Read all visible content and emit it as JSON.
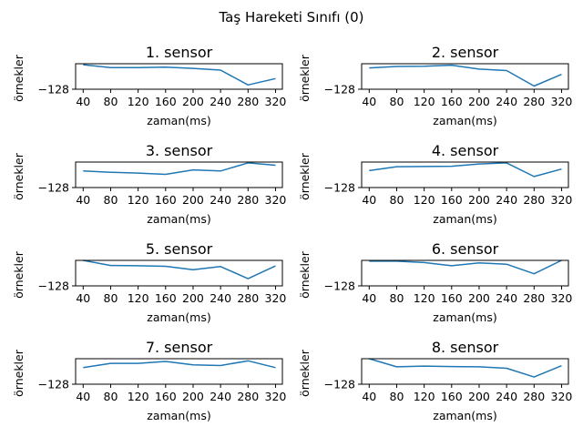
{
  "figure": {
    "suptitle": "Taş Hareketi Sınıfı (0)"
  },
  "chart_data": [
    {
      "type": "line",
      "title": "1. sensor",
      "xlabel": "zaman(ms)",
      "ylabel": "örnekler",
      "x": [
        40,
        80,
        120,
        160,
        200,
        240,
        280,
        320
      ],
      "xticks": [
        "40",
        "80",
        "120",
        "160",
        "200",
        "240",
        "280",
        "320"
      ],
      "yticks": [
        "−128"
      ],
      "xlim": [
        29,
        330
      ],
      "ylim": [
        -128,
        -126.8
      ],
      "grid": false,
      "color": "#1f77b4",
      "series": [
        {
          "values": [
            -126.85,
            -126.98,
            -126.98,
            -126.96,
            -127.02,
            -127.1,
            -127.8,
            -127.5
          ]
        }
      ]
    },
    {
      "type": "line",
      "title": "2. sensor",
      "xlabel": "zaman(ms)",
      "ylabel": "örnekler",
      "x": [
        40,
        80,
        120,
        160,
        200,
        240,
        280,
        320
      ],
      "xticks": [
        "40",
        "80",
        "120",
        "160",
        "200",
        "240",
        "280",
        "320"
      ],
      "yticks": [
        "−128"
      ],
      "xlim": [
        29,
        330
      ],
      "ylim": [
        -128,
        -126.8
      ],
      "grid": false,
      "color": "#1f77b4",
      "series": [
        {
          "values": [
            -127.0,
            -126.93,
            -126.92,
            -126.87,
            -127.05,
            -127.12,
            -127.85,
            -127.3
          ]
        }
      ]
    },
    {
      "type": "line",
      "title": "3. sensor",
      "xlabel": "zaman(ms)",
      "ylabel": "örnekler",
      "x": [
        40,
        80,
        120,
        160,
        200,
        240,
        280,
        320
      ],
      "xticks": [
        "40",
        "80",
        "120",
        "160",
        "200",
        "240",
        "280",
        "320"
      ],
      "yticks": [
        "−128"
      ],
      "xlim": [
        29,
        330
      ],
      "ylim": [
        -128,
        -126.8
      ],
      "grid": false,
      "color": "#1f77b4",
      "series": [
        {
          "values": [
            -127.22,
            -127.28,
            -127.32,
            -127.38,
            -127.17,
            -127.22,
            -126.84,
            -126.95
          ]
        }
      ]
    },
    {
      "type": "line",
      "title": "4. sensor",
      "xlabel": "zaman(ms)",
      "ylabel": "örnekler",
      "x": [
        40,
        80,
        120,
        160,
        200,
        240,
        280,
        320
      ],
      "xticks": [
        "40",
        "80",
        "120",
        "160",
        "200",
        "240",
        "280",
        "320"
      ],
      "yticks": [
        "−128"
      ],
      "xlim": [
        29,
        330
      ],
      "ylim": [
        -128,
        -126.8
      ],
      "grid": false,
      "color": "#1f77b4",
      "series": [
        {
          "values": [
            -127.2,
            -127.02,
            -127.01,
            -127.0,
            -126.89,
            -126.84,
            -127.48,
            -127.13
          ]
        }
      ]
    },
    {
      "type": "line",
      "title": "5. sensor",
      "xlabel": "zaman(ms)",
      "ylabel": "örnekler",
      "x": [
        40,
        80,
        120,
        160,
        200,
        240,
        280,
        320
      ],
      "xticks": [
        "40",
        "80",
        "120",
        "160",
        "200",
        "240",
        "280",
        "320"
      ],
      "yticks": [
        "−128"
      ],
      "xlim": [
        29,
        330
      ],
      "ylim": [
        -128,
        -126.8
      ],
      "grid": false,
      "color": "#1f77b4",
      "series": [
        {
          "values": [
            -126.8,
            -127.04,
            -127.05,
            -127.08,
            -127.24,
            -127.09,
            -127.66,
            -127.06
          ]
        }
      ]
    },
    {
      "type": "line",
      "title": "6. sensor",
      "xlabel": "zaman(ms)",
      "ylabel": "örnekler",
      "x": [
        40,
        80,
        120,
        160,
        200,
        240,
        280,
        320
      ],
      "xticks": [
        "40",
        "80",
        "120",
        "160",
        "200",
        "240",
        "280",
        "320"
      ],
      "yticks": [
        "−128"
      ],
      "xlim": [
        29,
        330
      ],
      "ylim": [
        -128,
        -126.8
      ],
      "grid": false,
      "color": "#1f77b4",
      "series": [
        {
          "values": [
            -126.84,
            -126.84,
            -126.9,
            -127.05,
            -126.92,
            -126.98,
            -127.43,
            -126.8
          ]
        }
      ]
    },
    {
      "type": "line",
      "title": "7. sensor",
      "xlabel": "zaman(ms)",
      "ylabel": "örnekler",
      "x": [
        40,
        80,
        120,
        160,
        200,
        240,
        280,
        320
      ],
      "xticks": [
        "40",
        "80",
        "120",
        "160",
        "200",
        "240",
        "280",
        "320"
      ],
      "yticks": [
        "−128"
      ],
      "xlim": [
        29,
        330
      ],
      "ylim": [
        -128,
        -126.8
      ],
      "grid": false,
      "color": "#1f77b4",
      "series": [
        {
          "values": [
            -127.22,
            -127.02,
            -127.02,
            -126.93,
            -127.09,
            -127.12,
            -126.9,
            -127.22
          ]
        }
      ]
    },
    {
      "type": "line",
      "title": "8. sensor",
      "xlabel": "zaman(ms)",
      "ylabel": "örnekler",
      "x": [
        40,
        80,
        120,
        160,
        200,
        240,
        280,
        320
      ],
      "xticks": [
        "40",
        "80",
        "120",
        "160",
        "200",
        "240",
        "280",
        "320"
      ],
      "yticks": [
        "−128"
      ],
      "xlim": [
        29,
        330
      ],
      "ylim": [
        -128,
        -126.8
      ],
      "grid": false,
      "color": "#1f77b4",
      "series": [
        {
          "values": [
            -126.8,
            -127.18,
            -127.15,
            -127.17,
            -127.18,
            -127.25,
            -127.66,
            -127.13
          ]
        }
      ]
    }
  ]
}
